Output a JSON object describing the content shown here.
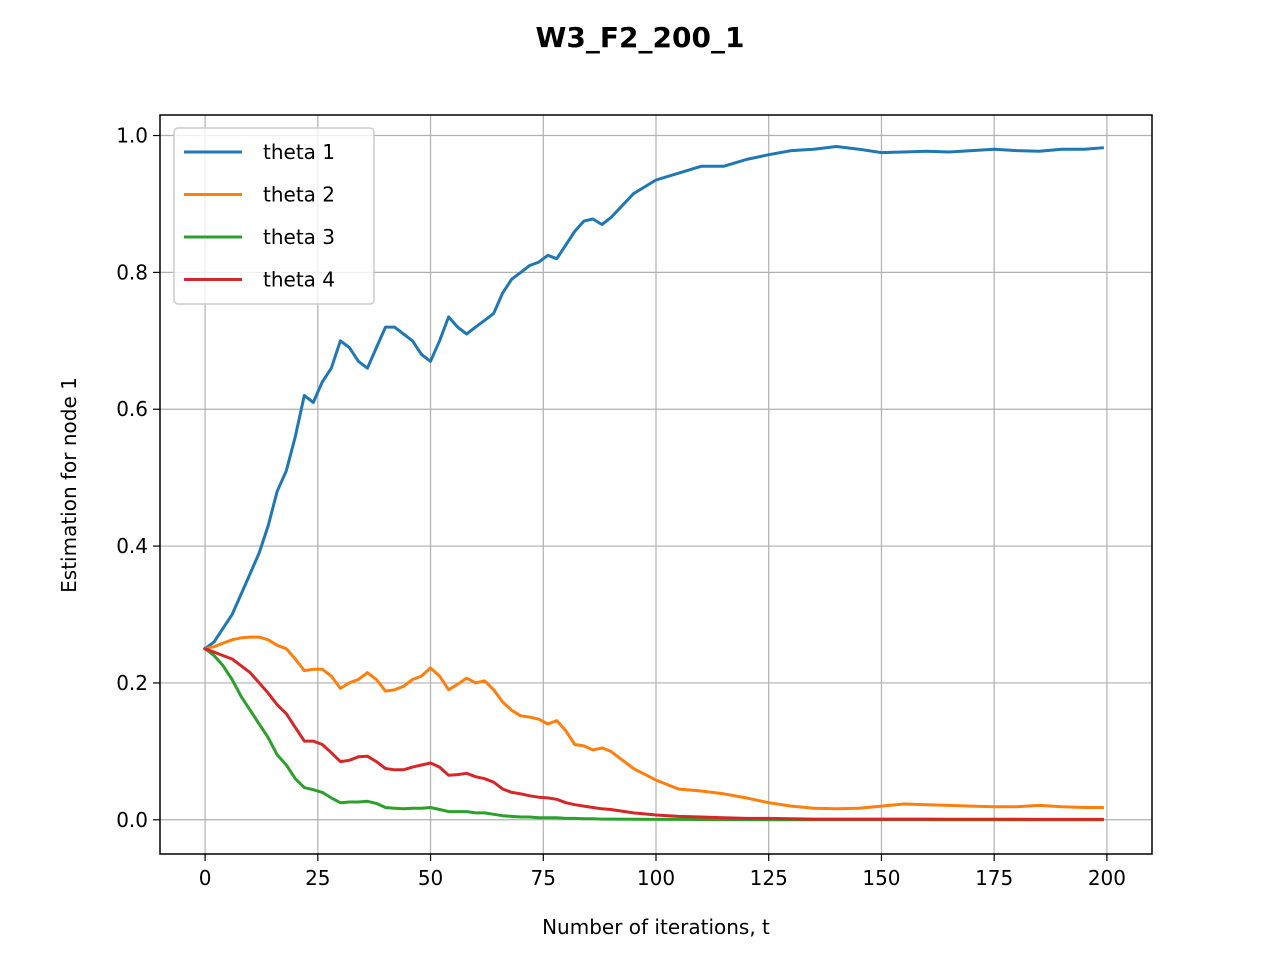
{
  "chart_data": {
    "type": "line",
    "title": "W3_F2_200_1",
    "xlabel": "Number of iterations, t",
    "ylabel": "Estimation for node 1",
    "xlim": [
      -10,
      210
    ],
    "ylim": [
      -0.05,
      1.03
    ],
    "xticks": [
      0,
      25,
      50,
      75,
      100,
      125,
      150,
      175,
      200
    ],
    "yticks": [
      0.0,
      0.2,
      0.4,
      0.6,
      0.8,
      1.0
    ],
    "xtick_labels": [
      "0",
      "25",
      "50",
      "75",
      "100",
      "125",
      "150",
      "175",
      "200"
    ],
    "ytick_labels": [
      "0.0",
      "0.2",
      "0.4",
      "0.6",
      "0.8",
      "1.0"
    ],
    "grid": true,
    "legend_position": "top-left",
    "series": [
      {
        "name": "theta 1",
        "color": "#1f77b4",
        "x": [
          0,
          2,
          4,
          6,
          8,
          10,
          12,
          14,
          16,
          18,
          20,
          22,
          24,
          26,
          28,
          30,
          32,
          34,
          36,
          38,
          40,
          42,
          44,
          46,
          48,
          50,
          52,
          54,
          56,
          58,
          60,
          62,
          64,
          66,
          68,
          70,
          72,
          74,
          76,
          78,
          80,
          82,
          84,
          86,
          88,
          90,
          95,
          100,
          105,
          110,
          115,
          120,
          125,
          130,
          135,
          140,
          145,
          150,
          155,
          160,
          165,
          170,
          175,
          180,
          185,
          190,
          195,
          199
        ],
        "y": [
          0.25,
          0.26,
          0.28,
          0.3,
          0.33,
          0.36,
          0.39,
          0.43,
          0.48,
          0.51,
          0.56,
          0.62,
          0.61,
          0.64,
          0.66,
          0.7,
          0.69,
          0.67,
          0.66,
          0.69,
          0.72,
          0.72,
          0.71,
          0.7,
          0.68,
          0.67,
          0.7,
          0.735,
          0.72,
          0.71,
          0.72,
          0.73,
          0.74,
          0.77,
          0.79,
          0.8,
          0.81,
          0.815,
          0.825,
          0.82,
          0.84,
          0.86,
          0.875,
          0.878,
          0.87,
          0.88,
          0.915,
          0.935,
          0.945,
          0.955,
          0.955,
          0.965,
          0.972,
          0.978,
          0.98,
          0.984,
          0.98,
          0.975,
          0.976,
          0.977,
          0.976,
          0.978,
          0.98,
          0.978,
          0.977,
          0.98,
          0.98,
          0.982
        ]
      },
      {
        "name": "theta 2",
        "color": "#ff7f0e",
        "x": [
          0,
          2,
          4,
          6,
          8,
          10,
          12,
          14,
          16,
          18,
          20,
          22,
          24,
          26,
          28,
          30,
          32,
          34,
          36,
          38,
          40,
          42,
          44,
          46,
          48,
          50,
          52,
          54,
          56,
          58,
          60,
          62,
          64,
          66,
          68,
          70,
          72,
          74,
          76,
          78,
          80,
          82,
          84,
          86,
          88,
          90,
          95,
          100,
          105,
          110,
          115,
          120,
          125,
          130,
          135,
          140,
          145,
          150,
          155,
          160,
          165,
          170,
          175,
          180,
          185,
          190,
          195,
          199
        ],
        "y": [
          0.25,
          0.253,
          0.258,
          0.263,
          0.266,
          0.267,
          0.267,
          0.263,
          0.255,
          0.25,
          0.235,
          0.218,
          0.22,
          0.22,
          0.21,
          0.192,
          0.2,
          0.205,
          0.215,
          0.205,
          0.188,
          0.19,
          0.195,
          0.205,
          0.21,
          0.222,
          0.21,
          0.19,
          0.198,
          0.207,
          0.2,
          0.203,
          0.19,
          0.172,
          0.16,
          0.152,
          0.15,
          0.147,
          0.14,
          0.145,
          0.13,
          0.11,
          0.108,
          0.102,
          0.105,
          0.1,
          0.075,
          0.058,
          0.045,
          0.042,
          0.038,
          0.032,
          0.025,
          0.02,
          0.017,
          0.016,
          0.017,
          0.02,
          0.023,
          0.022,
          0.021,
          0.02,
          0.019,
          0.019,
          0.021,
          0.019,
          0.018,
          0.018
        ]
      },
      {
        "name": "theta 3",
        "color": "#2ca02c",
        "x": [
          0,
          2,
          4,
          6,
          8,
          10,
          12,
          14,
          16,
          18,
          20,
          22,
          24,
          26,
          28,
          30,
          32,
          34,
          36,
          38,
          40,
          42,
          44,
          46,
          48,
          50,
          52,
          54,
          56,
          58,
          60,
          62,
          64,
          66,
          68,
          70,
          72,
          74,
          76,
          78,
          80,
          82,
          84,
          86,
          88,
          90,
          95,
          100,
          105,
          110,
          115,
          120,
          125,
          130,
          135,
          140,
          145,
          150,
          155,
          160,
          165,
          170,
          175,
          180,
          185,
          190,
          195,
          199
        ],
        "y": [
          0.25,
          0.24,
          0.225,
          0.205,
          0.18,
          0.16,
          0.14,
          0.12,
          0.095,
          0.08,
          0.06,
          0.047,
          0.044,
          0.04,
          0.032,
          0.025,
          0.026,
          0.026,
          0.027,
          0.024,
          0.018,
          0.017,
          0.016,
          0.017,
          0.017,
          0.018,
          0.015,
          0.012,
          0.012,
          0.012,
          0.01,
          0.01,
          0.008,
          0.006,
          0.005,
          0.004,
          0.004,
          0.003,
          0.003,
          0.003,
          0.002,
          0.002,
          0.0015,
          0.0015,
          0.001,
          0.001,
          0.0008,
          0.0006,
          0.0005,
          0.0004,
          0.0003,
          0.0003,
          0.0002,
          0.0002,
          0.0002,
          0.0001,
          0.0001,
          0.0001,
          0.0001,
          0.0001,
          0.0001,
          0.0001,
          0.0001,
          0.0001,
          0.0001,
          0.0001,
          0.0001,
          0.0001
        ]
      },
      {
        "name": "theta 4",
        "color": "#d62728",
        "x": [
          0,
          2,
          4,
          6,
          8,
          10,
          12,
          14,
          16,
          18,
          20,
          22,
          24,
          26,
          28,
          30,
          32,
          34,
          36,
          38,
          40,
          42,
          44,
          46,
          48,
          50,
          52,
          54,
          56,
          58,
          60,
          62,
          64,
          66,
          68,
          70,
          72,
          74,
          76,
          78,
          80,
          82,
          84,
          86,
          88,
          90,
          95,
          100,
          105,
          110,
          115,
          120,
          125,
          130,
          135,
          140,
          145,
          150,
          155,
          160,
          165,
          170,
          175,
          180,
          185,
          190,
          195,
          199
        ],
        "y": [
          0.25,
          0.245,
          0.24,
          0.235,
          0.225,
          0.215,
          0.2,
          0.185,
          0.168,
          0.155,
          0.135,
          0.115,
          0.115,
          0.11,
          0.098,
          0.085,
          0.087,
          0.092,
          0.093,
          0.085,
          0.075,
          0.073,
          0.073,
          0.077,
          0.08,
          0.083,
          0.077,
          0.065,
          0.066,
          0.068,
          0.063,
          0.06,
          0.055,
          0.045,
          0.04,
          0.038,
          0.035,
          0.033,
          0.032,
          0.03,
          0.025,
          0.022,
          0.02,
          0.018,
          0.016,
          0.015,
          0.01,
          0.007,
          0.005,
          0.004,
          0.003,
          0.002,
          0.002,
          0.0015,
          0.001,
          0.001,
          0.001,
          0.001,
          0.001,
          0.001,
          0.0008,
          0.0008,
          0.0007,
          0.0007,
          0.0006,
          0.0006,
          0.0005,
          0.0005
        ]
      }
    ]
  }
}
